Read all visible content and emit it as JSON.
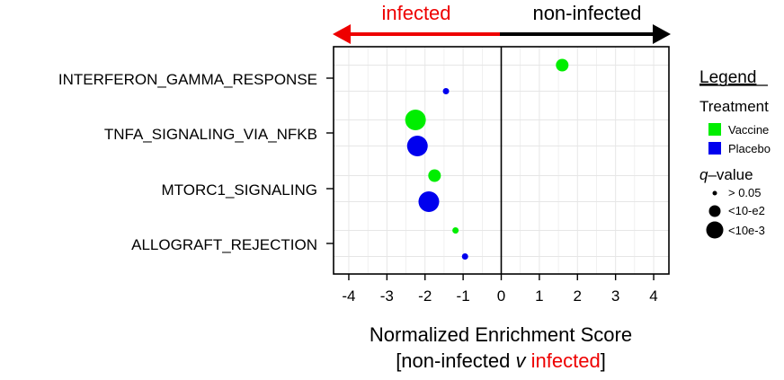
{
  "chart_data": {
    "type": "scatter",
    "title": "",
    "xlabel_line1": "Normalized Enrichment Score",
    "xlabel_line2": {
      "open": "[non-infected ",
      "italic": "v",
      "space": " ",
      "red": "infected",
      "close": "]"
    },
    "xlim": [
      -4.4,
      4.4
    ],
    "x_ticks": [
      -4,
      -3,
      -2,
      -1,
      0,
      1,
      2,
      3,
      4
    ],
    "x_tick_labels": [
      "-4",
      "-3",
      "-2",
      "-1",
      "0",
      "1",
      "2",
      "3",
      "4"
    ],
    "grid": true,
    "categories": [
      "INTERFERON_GAMMA_RESPONSE",
      "TNFA_SIGNALING_VIA_NFKB",
      "MTORC1_SIGNALING",
      "ALLOGRAFT_REJECTION"
    ],
    "direction_labels": {
      "left": "infected",
      "right": "non-infected"
    },
    "series": [
      {
        "name": "Vaccine",
        "color": "#00ee00",
        "points": [
          {
            "category": "INTERFERON_GAMMA_RESPONSE",
            "x": 1.6,
            "qvalue": "<10-e2"
          },
          {
            "category": "TNFA_SIGNALING_VIA_NFKB",
            "x": -2.25,
            "qvalue": "<10e-3"
          },
          {
            "category": "MTORC1_SIGNALING",
            "x": -1.75,
            "qvalue": "<10-e2"
          },
          {
            "category": "ALLOGRAFT_REJECTION",
            "x": -1.2,
            "qvalue": "> 0.05"
          }
        ]
      },
      {
        "name": "Placebo",
        "color": "#0000ee",
        "points": [
          {
            "category": "INTERFERON_GAMMA_RESPONSE",
            "x": -1.45,
            "qvalue": "> 0.05"
          },
          {
            "category": "TNFA_SIGNALING_VIA_NFKB",
            "x": -2.2,
            "qvalue": "<10e-3"
          },
          {
            "category": "MTORC1_SIGNALING",
            "x": -1.9,
            "qvalue": "<10e-3"
          },
          {
            "category": "ALLOGRAFT_REJECTION",
            "x": -0.95,
            "qvalue": "> 0.05"
          }
        ]
      }
    ],
    "legend": {
      "position": "right",
      "title": "Legend",
      "treatment_title": "Treatment",
      "treatments": [
        {
          "label": "Vaccine",
          "color": "#00ee00"
        },
        {
          "label": "Placebo",
          "color": "#0000ee"
        }
      ],
      "qvalue_title_italic": "q",
      "qvalue_title_rest": "–value",
      "qvalues": [
        "> 0.05",
        "<10-e2",
        "<10e-3"
      ]
    }
  },
  "colors": {
    "infected": "#ee0000",
    "non_infected": "#000000",
    "grid": "#e6e6e6"
  }
}
